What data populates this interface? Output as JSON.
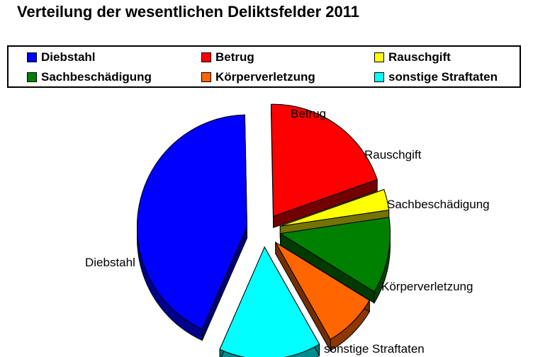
{
  "chart_data": {
    "type": "pie",
    "title": "Verteilung der wesentlichen Deliktsfelder 2011",
    "legend_placement": "top",
    "three_d": true,
    "slices": [
      {
        "label": "Diebstahl",
        "value": 43,
        "color": "#0000ff",
        "exploded": true
      },
      {
        "label": "Betrug",
        "value": 20,
        "color": "#ff0000",
        "exploded": true
      },
      {
        "label": "Rauschgift",
        "value": 3,
        "color": "#ffff00",
        "exploded": true
      },
      {
        "label": "Sachbeschädigung",
        "value": 11,
        "color": "#008000",
        "exploded": true
      },
      {
        "label": "Körperverletzung",
        "value": 8,
        "color": "#ff6600",
        "exploded": true
      },
      {
        "label": "sonstige Straftaten",
        "value": 15,
        "color": "#00ffff",
        "exploded": true
      }
    ]
  }
}
